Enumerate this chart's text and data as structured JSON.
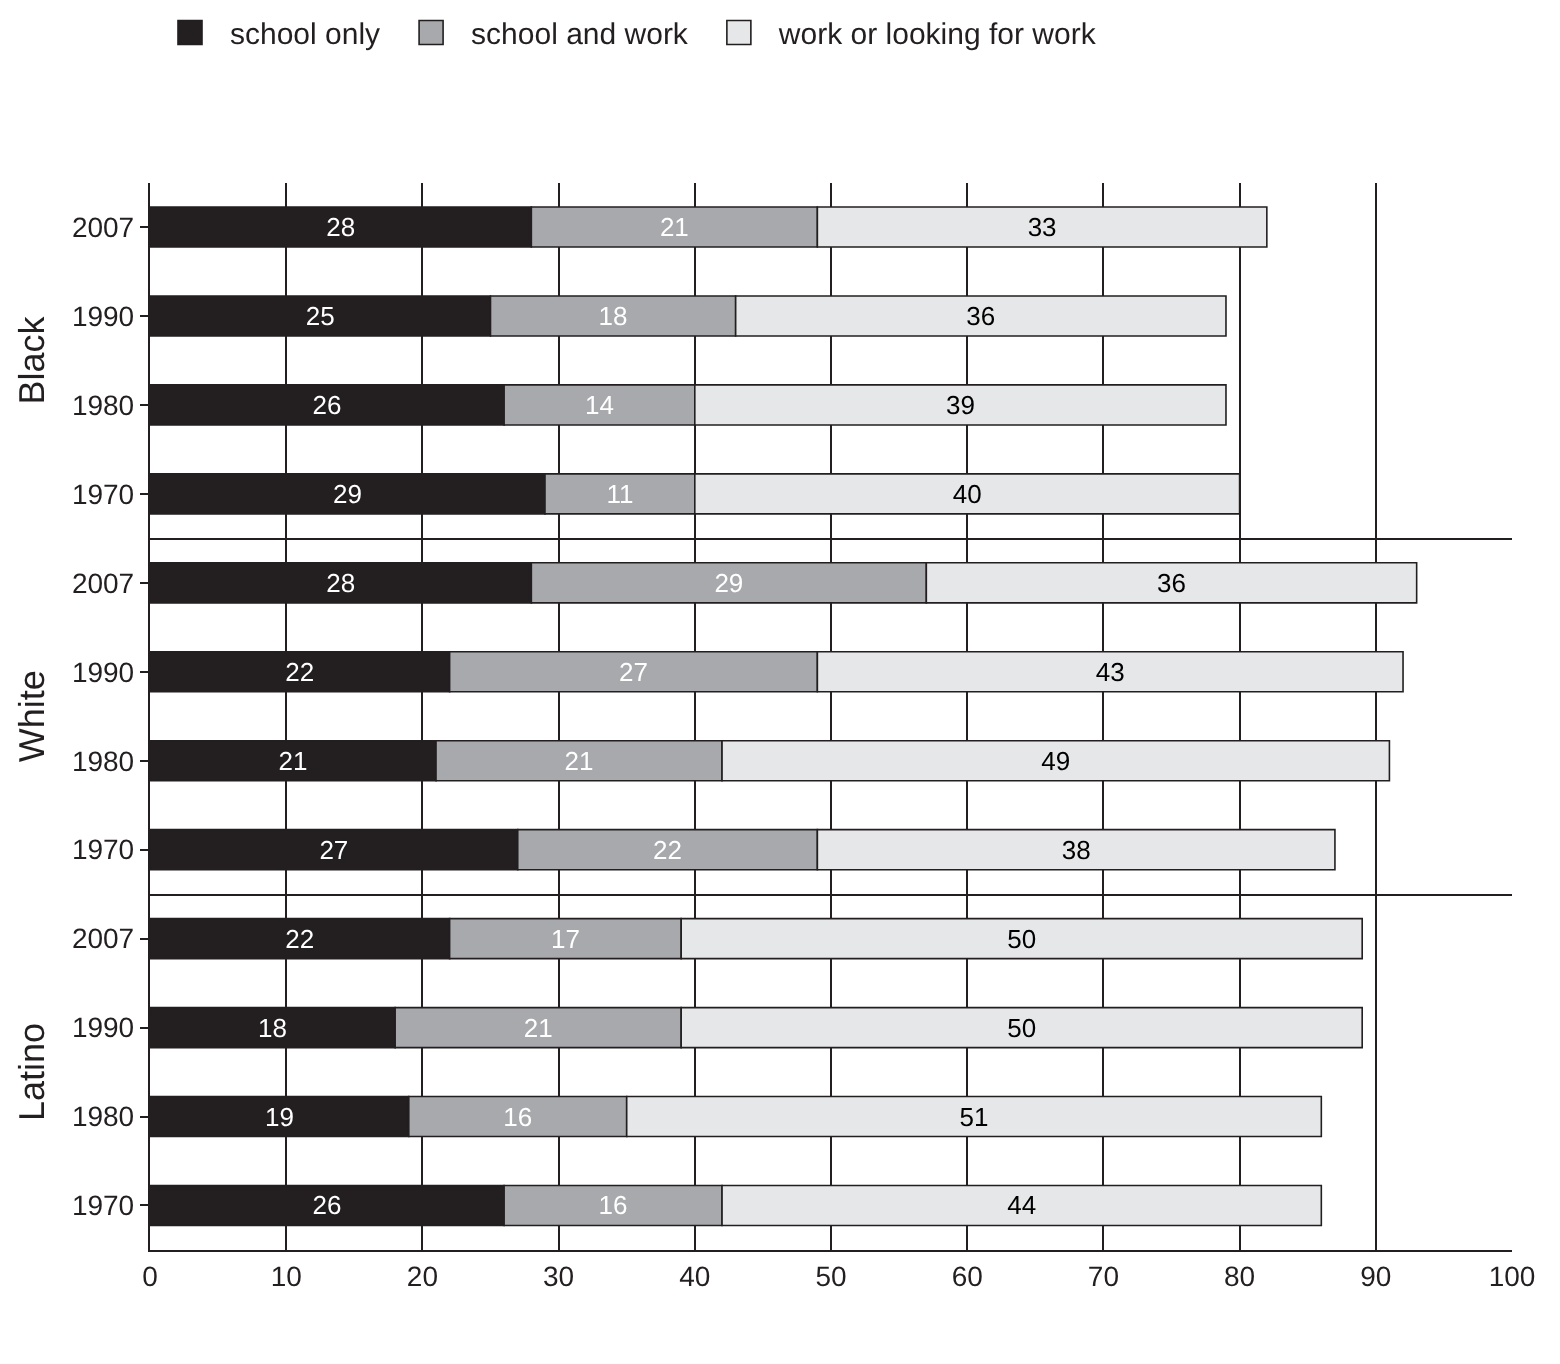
{
  "chart_data": [
    {
      "type": "bar",
      "orientation": "horizontal",
      "stacked": true,
      "ylabel": "Black",
      "categories": [
        "2007",
        "1990",
        "1980",
        "1970"
      ],
      "xlim": [
        0,
        100
      ],
      "xticks": [
        0,
        10,
        20,
        30,
        40,
        50,
        60,
        70,
        80,
        90,
        100
      ],
      "grid": "x",
      "tick_labels": "y",
      "legend": "top",
      "data_labels": true,
      "series": [
        {
          "name": "school only",
          "color": "#231f20",
          "values": [
            28,
            25,
            26,
            29
          ]
        },
        {
          "name": "school and work",
          "color": "#a7a9ac",
          "values": [
            21,
            18,
            14,
            11
          ]
        },
        {
          "name": "work or looking for work",
          "color": "#e6e7e8",
          "values": [
            33,
            36,
            39,
            40
          ]
        }
      ]
    },
    {
      "type": "bar",
      "orientation": "horizontal",
      "stacked": true,
      "ylabel": "White",
      "categories": [
        "2007",
        "1990",
        "1980",
        "1970"
      ],
      "xlim": [
        0,
        100
      ],
      "xticks": [
        0,
        10,
        20,
        30,
        40,
        50,
        60,
        70,
        80,
        90,
        100
      ],
      "grid": "x",
      "tick_labels": "y",
      "data_labels": true,
      "series": [
        {
          "color": "#231f20",
          "values": [
            28,
            22,
            21,
            27
          ]
        },
        {
          "color": "#a7a9ac",
          "values": [
            29,
            27,
            21,
            22
          ]
        },
        {
          "color": "#e6e7e8",
          "values": [
            36,
            43,
            49,
            38
          ]
        }
      ]
    },
    {
      "type": "bar",
      "orientation": "horizontal",
      "stacked": true,
      "ylabel": "Latino",
      "categories": [
        "2007",
        "1990",
        "1980",
        "1970"
      ],
      "xlim": [
        0,
        100
      ],
      "xticks": [
        0,
        10,
        20,
        30,
        40,
        50,
        60,
        70,
        80,
        90,
        100
      ],
      "grid": "x",
      "data_labels": true,
      "series": [
        {
          "color": "#231f20",
          "values": [
            22,
            18,
            19,
            26
          ]
        },
        {
          "color": "#a7a9ac",
          "values": [
            17,
            21,
            16,
            16
          ]
        },
        {
          "color": "#e6e7e8",
          "values": [
            50,
            50,
            51,
            44
          ]
        }
      ]
    }
  ]
}
